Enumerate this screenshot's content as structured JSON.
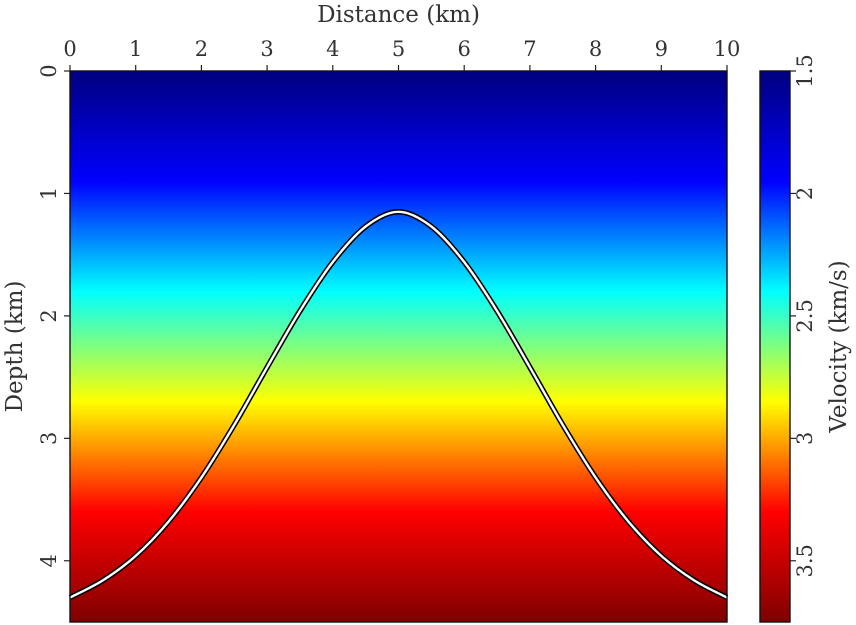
{
  "chart_data": {
    "type": "heatmap",
    "title": "",
    "xlabel": "Distance (km)",
    "ylabel": "Depth (km)",
    "xlim": [
      0,
      10
    ],
    "ylim": [
      0,
      4.5
    ],
    "x_ticks": [
      0,
      1,
      2,
      3,
      4,
      5,
      6,
      7,
      8,
      9,
      10
    ],
    "y_ticks": [
      0,
      1,
      2,
      3,
      4
    ],
    "x_axis_position": "top",
    "y_axis_inverted": true,
    "grid": false,
    "colorbar": {
      "label": "Velocity (km/s)",
      "range": [
        1.5,
        3.75
      ],
      "ticks": [
        1.5,
        2,
        2.5,
        3,
        3.5
      ],
      "colormap": "jet",
      "colors": [
        "#00007f",
        "#0000ff",
        "#00ffff",
        "#ffff00",
        "#ff0000",
        "#7f0000"
      ],
      "orientation": "vertical",
      "position": "right"
    },
    "velocity_model": {
      "description_of_variation": "depth",
      "depth": [
        0,
        4.5
      ],
      "velocity": [
        1.5,
        3.75
      ]
    },
    "reflector": {
      "shape": "gaussian",
      "color": "#ffffff",
      "outline_color": "#000000",
      "x": [
        0,
        0.5,
        1,
        1.5,
        2,
        2.5,
        3,
        3.5,
        4,
        4.5,
        5,
        5.5,
        6,
        6.5,
        7,
        7.5,
        8,
        8.5,
        9,
        9.5,
        10
      ],
      "depth": [
        4.3,
        4.16,
        3.96,
        3.68,
        3.32,
        2.89,
        2.42,
        1.96,
        1.56,
        1.27,
        1.15,
        1.27,
        1.56,
        1.96,
        2.42,
        2.89,
        3.32,
        3.68,
        3.96,
        4.16,
        4.3
      ]
    }
  }
}
